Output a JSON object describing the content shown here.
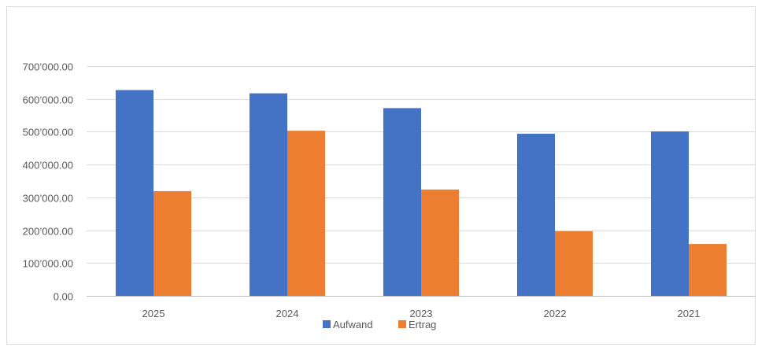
{
  "chart_data": {
    "type": "bar",
    "categories": [
      "2025",
      "2024",
      "2023",
      "2022",
      "2021"
    ],
    "series": [
      {
        "name": "Aufwand",
        "color": "#4472c4",
        "values": [
          627000,
          617000,
          572000,
          494000,
          501000
        ]
      },
      {
        "name": "Ertrag",
        "color": "#ed7d31",
        "values": [
          319000,
          503000,
          324000,
          197000,
          158000
        ]
      }
    ],
    "y_ticks": [
      0,
      100000,
      200000,
      300000,
      400000,
      500000,
      600000,
      700000
    ],
    "y_tick_labels": [
      "0.00",
      "100’000.00",
      "200’000.00",
      "300’000.00",
      "400’000.00",
      "500’000.00",
      "600’000.00",
      "700’000.00"
    ],
    "ylim": [
      0,
      700000
    ],
    "grid": true,
    "legend_position": "bottom",
    "title": "",
    "xlabel": "",
    "ylabel": ""
  },
  "style": {
    "gridline_color": "#d9d9d9",
    "axis_color": "#bfbfbf"
  }
}
